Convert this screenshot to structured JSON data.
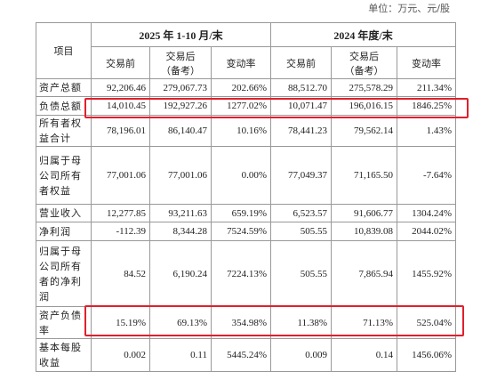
{
  "unit_note": "单位：万元、元/股",
  "table": {
    "corner": "项目",
    "groups": [
      "2025 年 1-10 月/末",
      "2024 年度/末"
    ],
    "subheaders": [
      "交易前",
      "交易后\n（备考）",
      "变动率",
      "交易前",
      "交易后\n（备考）",
      "变动率"
    ],
    "rows": [
      [
        "资产总额",
        "92,206.46",
        "279,067.73",
        "202.66%",
        "88,512.70",
        "275,578.29",
        "211.34%"
      ],
      [
        "负债总额",
        "14,010.45",
        "192,927.26",
        "1277.02%",
        "10,071.47",
        "196,016.15",
        "1846.25%"
      ],
      [
        "所有者权益合计",
        "78,196.01",
        "86,140.47",
        "10.16%",
        "78,441.23",
        "79,562.14",
        "1.43%"
      ],
      [
        "归属于母公司所有者权益",
        "77,001.06",
        "77,001.06",
        "0.00%",
        "77,049.37",
        "71,165.50",
        "-7.64%"
      ],
      [
        "营业收入",
        "12,277.85",
        "93,211.63",
        "659.19%",
        "6,523.57",
        "91,606.77",
        "1304.24%"
      ],
      [
        "净利润",
        "-112.39",
        "8,344.28",
        "7524.59%",
        "505.55",
        "10,839.08",
        "2044.02%"
      ],
      [
        "归属于母公司所有者的净利润",
        "84.52",
        "6,190.24",
        "7224.13%",
        "505.55",
        "7,865.94",
        "1455.92%"
      ],
      [
        "资产负债率",
        "15.19%",
        "69.13%",
        "354.98%",
        "11.38%",
        "71.13%",
        "525.04%"
      ],
      [
        "基本每股收益",
        "0.002",
        "0.11",
        "5445.24%",
        "0.009",
        "0.14",
        "1456.06%"
      ]
    ]
  }
}
